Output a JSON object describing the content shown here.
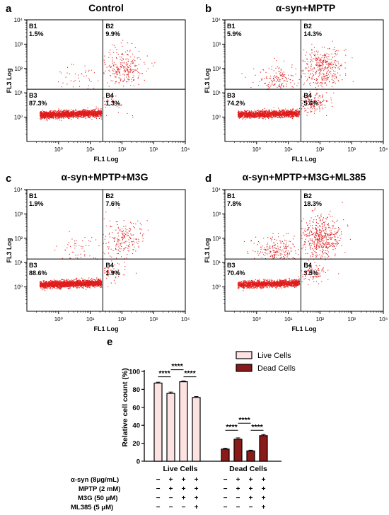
{
  "panels": [
    {
      "letter": "a",
      "title": "Control",
      "quadrants": [
        {
          "label": "B1",
          "value": "1.5%"
        },
        {
          "label": "B2",
          "value": "9.9%"
        },
        {
          "label": "B3",
          "value": "87.3%"
        },
        {
          "label": "B4",
          "value": "1.3%"
        }
      ]
    },
    {
      "letter": "b",
      "title": "α-syn+MPTP",
      "quadrants": [
        {
          "label": "B1",
          "value": "5.9%"
        },
        {
          "label": "B2",
          "value": "14.3%"
        },
        {
          "label": "B3",
          "value": "74.2%"
        },
        {
          "label": "B4",
          "value": "5.6%"
        }
      ]
    },
    {
      "letter": "c",
      "title": "α-syn+MPTP+M3G",
      "quadrants": [
        {
          "label": "B1",
          "value": "1.9%"
        },
        {
          "label": "B2",
          "value": "7.6%"
        },
        {
          "label": "B3",
          "value": "88.6%"
        },
        {
          "label": "B4",
          "value": "1.9%"
        }
      ]
    },
    {
      "letter": "d",
      "title": "α-syn+MPTP+M3G+ML385",
      "quadrants": [
        {
          "label": "B1",
          "value": "7.8%"
        },
        {
          "label": "B2",
          "value": "18.3%"
        },
        {
          "label": "B3",
          "value": "70.4%"
        },
        {
          "label": "B4",
          "value": "3.5%"
        }
      ]
    }
  ],
  "flow_axes": {
    "xlabel": "FL1 Log",
    "ylabel": "FL3 Log",
    "x_ticks": [
      "10⁰",
      "10¹",
      "10²",
      "10³",
      "10⁴"
    ],
    "y_ticks": [
      "10⁰",
      "10¹",
      "10²",
      "10³",
      "10⁴"
    ],
    "gate_x": 25,
    "gate_y": 14
  },
  "chart_data": [
    {
      "type": "scatter",
      "xscale": "log",
      "yscale": "log",
      "xlim": [
        0.1,
        10000
      ],
      "ylim": [
        0.1,
        10000
      ],
      "quadrant_gate": {
        "x": 25,
        "y": 14
      },
      "panels": [
        "a",
        "b",
        "c",
        "d"
      ],
      "color": "#e01b1b"
    },
    {
      "type": "bar",
      "letter": "e",
      "ylabel": "Relative cell count (%)",
      "ylim": [
        0,
        100
      ],
      "y_ticks": [
        0,
        20,
        40,
        60,
        80,
        100
      ],
      "series": [
        {
          "name": "Live Cells",
          "color": "#fde2e2",
          "values": [
            87.0,
            75.5,
            88.5,
            71.0
          ],
          "errors": [
            1.0,
            1.5,
            0.8,
            1.0
          ]
        },
        {
          "name": "Dead Cells",
          "color": "#8b1a1a",
          "values": [
            13.5,
            24.5,
            11.5,
            28.5
          ],
          "errors": [
            1.0,
            1.5,
            0.8,
            1.2
          ]
        }
      ],
      "significance": "****",
      "group_labels": [
        "Live Cells",
        "Dead Cells"
      ],
      "conditions": [
        {
          "label": "α-syn (8μg/mL)",
          "marks": [
            "−",
            "+",
            "+",
            "+"
          ]
        },
        {
          "label": "MPTP (2 mM)",
          "marks": [
            "−",
            "+",
            "+",
            "+"
          ]
        },
        {
          "label": "M3G (50 μM)",
          "marks": [
            "−",
            "−",
            "+",
            "+"
          ]
        },
        {
          "label": "ML385 (5 μM)",
          "marks": [
            "−",
            "−",
            "−",
            "+"
          ]
        }
      ]
    }
  ]
}
